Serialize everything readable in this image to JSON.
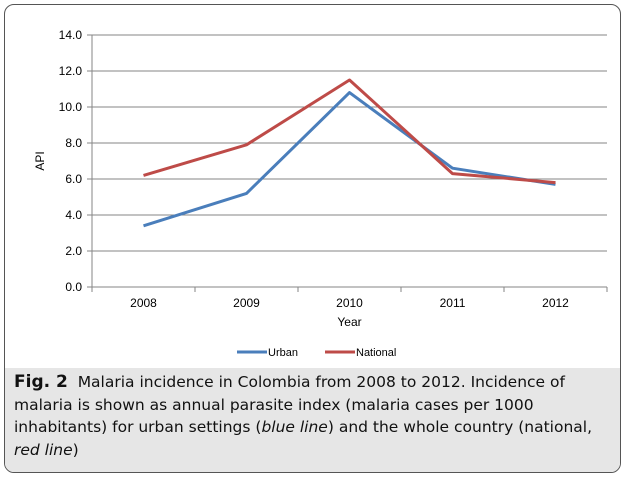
{
  "chart_data": {
    "type": "line",
    "categories": [
      "2008",
      "2009",
      "2010",
      "2011",
      "2012"
    ],
    "series": [
      {
        "name": "Urban",
        "color": "#4a7ebb",
        "values": [
          3.4,
          5.2,
          10.8,
          6.6,
          5.7
        ]
      },
      {
        "name": "National",
        "color": "#be4b48",
        "values": [
          6.2,
          7.9,
          11.5,
          6.3,
          5.8
        ]
      }
    ],
    "xlabel": "Year",
    "ylabel": "API",
    "ylim": [
      0,
      14
    ],
    "yticks": [
      "0.0",
      "2.0",
      "4.0",
      "6.0",
      "8.0",
      "10.0",
      "12.0",
      "14.0"
    ],
    "grid": true,
    "legend": "bottom"
  },
  "caption": {
    "label": "Fig. 2",
    "text_1": "Malaria incidence in Colombia from 2008 to 2012. Incidence of malaria is shown as annual parasite index (malaria cases per 1000 inhabitants) for urban settings (",
    "blue_line": "blue line",
    "text_2": ") and the whole country (national, ",
    "red_line": "red line",
    "text_3": ")"
  }
}
